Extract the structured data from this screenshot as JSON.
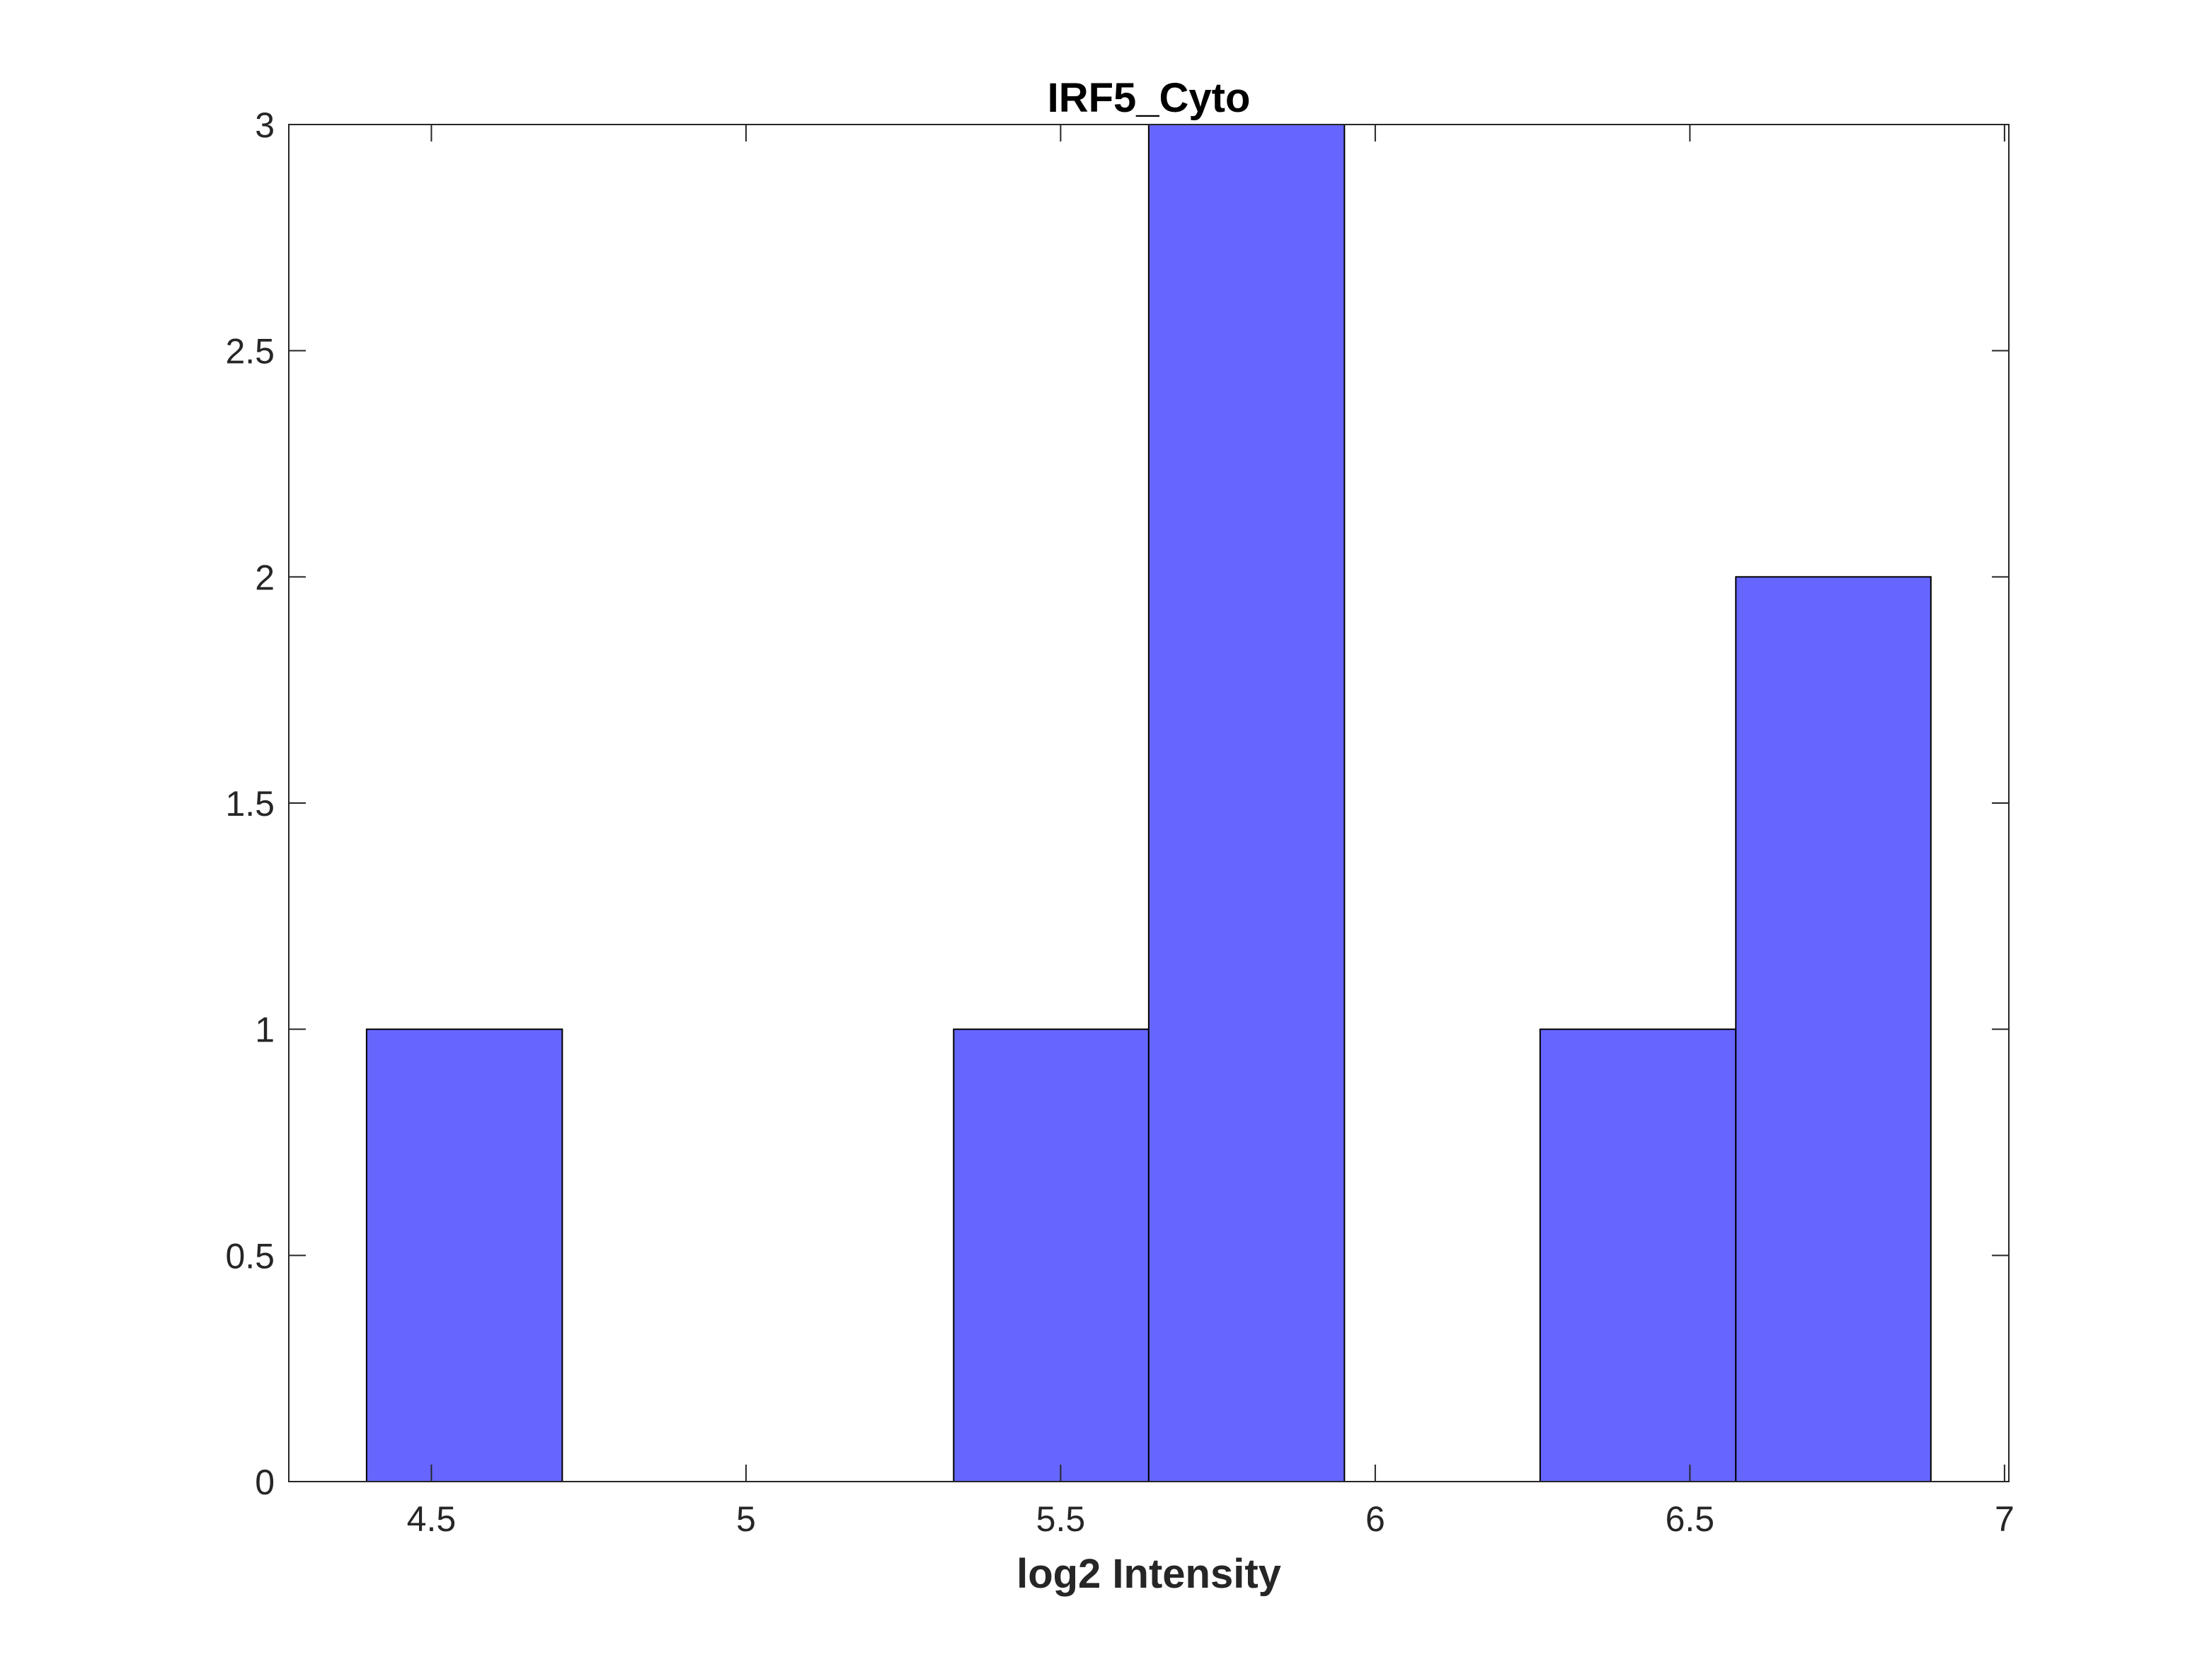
{
  "chart_data": {
    "type": "bar",
    "title": "IRF5_Cyto",
    "xlabel": "log2 Intensity",
    "ylabel": "",
    "xlim": [
      4.2734,
      7.0069
    ],
    "ylim": [
      0,
      3
    ],
    "grid": false,
    "bar_color": "#6666ff",
    "edge_color": "#000000",
    "bins": [
      {
        "start": 4.397,
        "end": 4.708,
        "count": 1
      },
      {
        "start": 4.708,
        "end": 5.019,
        "count": 0
      },
      {
        "start": 5.019,
        "end": 5.33,
        "count": 0
      },
      {
        "start": 5.33,
        "end": 5.64,
        "count": 1
      },
      {
        "start": 5.64,
        "end": 5.951,
        "count": 3
      },
      {
        "start": 5.951,
        "end": 6.262,
        "count": 0
      },
      {
        "start": 6.262,
        "end": 6.573,
        "count": 1
      },
      {
        "start": 6.573,
        "end": 6.883,
        "count": 2
      }
    ],
    "xticks": [
      {
        "value": 4.5,
        "label": "4.5"
      },
      {
        "value": 5,
        "label": "5"
      },
      {
        "value": 5.5,
        "label": "5.5"
      },
      {
        "value": 6,
        "label": "6"
      },
      {
        "value": 6.5,
        "label": "6.5"
      },
      {
        "value": 7,
        "label": "7"
      }
    ],
    "yticks": [
      {
        "value": 0,
        "label": "0"
      },
      {
        "value": 0.5,
        "label": "0.5"
      },
      {
        "value": 1,
        "label": "1"
      },
      {
        "value": 1.5,
        "label": "1.5"
      },
      {
        "value": 2,
        "label": "2"
      },
      {
        "value": 2.5,
        "label": "2.5"
      },
      {
        "value": 3,
        "label": "3"
      }
    ]
  }
}
